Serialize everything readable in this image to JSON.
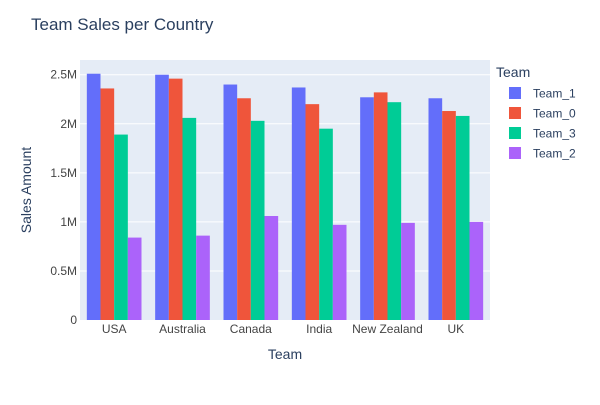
{
  "chart_data": {
    "type": "bar",
    "title": "Team Sales per Country",
    "xlabel": "Team",
    "ylabel": "Sales Amount",
    "categories": [
      "USA",
      "Australia",
      "Canada",
      "India",
      "New Zealand",
      "UK"
    ],
    "ylim": [
      0,
      2650000
    ],
    "yticks": [
      {
        "value": 0,
        "label": "0"
      },
      {
        "value": 500000,
        "label": "0.5M"
      },
      {
        "value": 1000000,
        "label": "1M"
      },
      {
        "value": 1500000,
        "label": "1.5M"
      },
      {
        "value": 2000000,
        "label": "2M"
      },
      {
        "value": 2500000,
        "label": "2.5M"
      }
    ],
    "grid": true,
    "legend_title": "Team",
    "legend_position": "right",
    "series": [
      {
        "name": "Team_1",
        "color": "#636efa",
        "values": [
          2510000,
          2500000,
          2400000,
          2370000,
          2270000,
          2260000
        ]
      },
      {
        "name": "Team_0",
        "color": "#ef553b",
        "values": [
          2360000,
          2460000,
          2260000,
          2200000,
          2320000,
          2130000
        ]
      },
      {
        "name": "Team_3",
        "color": "#00cc96",
        "values": [
          1890000,
          2060000,
          2030000,
          1950000,
          2220000,
          2080000
        ]
      },
      {
        "name": "Team_2",
        "color": "#ab63fa",
        "values": [
          840000,
          860000,
          1060000,
          970000,
          990000,
          1000000
        ]
      }
    ],
    "colors": {
      "plot_background": "#e5ecf6",
      "gridline": "#ffffff",
      "text": "#2a3f5f",
      "tick_text": "#444444"
    }
  }
}
